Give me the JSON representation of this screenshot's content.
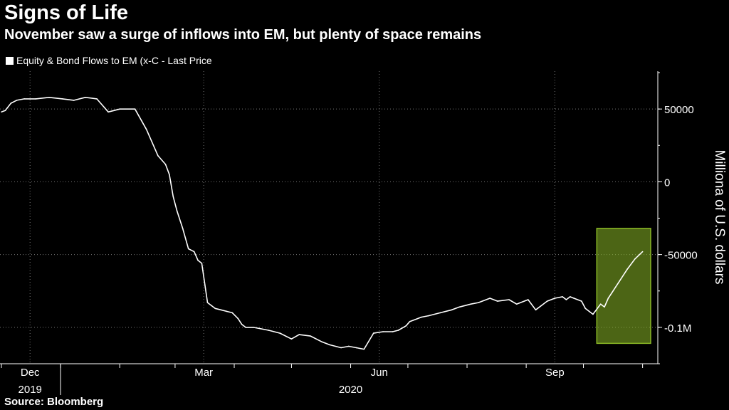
{
  "chart_data": {
    "type": "line",
    "title": "Signs of Life",
    "subtitle": "November saw a surge of inflows into EM, but plenty of space remains",
    "ylabel": "Milliona of U.S. dollars",
    "legend": "Equity & Bond Flows to EM (x-C - Last Price",
    "source": "Source: Bloomberg",
    "ylim": [
      -125000,
      76000
    ],
    "y_ticks": [
      {
        "value": 50000,
        "label": "50000"
      },
      {
        "value": 0,
        "label": "0"
      },
      {
        "value": -50000,
        "label": "-50000"
      },
      {
        "value": -100000,
        "label": "-0.1M"
      }
    ],
    "x_labels": [
      {
        "day": 15,
        "label": "Dec"
      },
      {
        "day": 106,
        "label": "Mar"
      },
      {
        "day": 198,
        "label": "Jun"
      },
      {
        "day": 290,
        "label": "Sep"
      }
    ],
    "year_labels": [
      {
        "day": 15,
        "label": "2019"
      },
      {
        "day": 183,
        "label": "2020"
      }
    ],
    "highlight": {
      "x_start_day": 312,
      "x_end_day": 338,
      "y_top": -32000,
      "y_bottom": -111000,
      "color": "#8ab826"
    },
    "series": [
      {
        "name": "Equity & Bond Flows to EM (x-C - Last Price",
        "x_days": [
          0,
          2,
          5,
          8,
          12,
          18,
          25,
          32,
          38,
          44,
          50,
          56,
          62,
          70,
          76,
          82,
          86,
          88,
          90,
          92,
          95,
          98,
          101,
          103,
          105,
          108,
          110,
          112,
          115,
          118,
          121,
          124,
          126,
          128,
          132,
          136,
          140,
          146,
          152,
          156,
          162,
          168,
          172,
          178,
          182,
          186,
          190,
          195,
          200,
          205,
          208,
          212,
          214,
          216,
          220,
          224,
          230,
          236,
          240,
          246,
          250,
          256,
          260,
          266,
          270,
          276,
          280,
          286,
          290,
          294,
          296,
          298,
          300,
          304,
          306,
          310,
          314,
          316,
          318,
          320,
          324,
          328,
          332,
          336
        ],
        "values": [
          48000,
          49000,
          54000,
          56000,
          57000,
          57000,
          58000,
          57000,
          56000,
          58000,
          57000,
          48000,
          50000,
          50000,
          36000,
          18000,
          12000,
          5000,
          -10000,
          -20000,
          -32000,
          -46000,
          -48000,
          -54000,
          -56000,
          -83000,
          -85000,
          -87000,
          -88000,
          -89000,
          -90000,
          -94000,
          -98000,
          -100000,
          -100000,
          -101000,
          -102000,
          -104000,
          -108000,
          -105000,
          -106000,
          -110000,
          -112000,
          -114000,
          -113000,
          -114000,
          -115000,
          -104000,
          -103000,
          -103000,
          -102000,
          -99000,
          -96000,
          -95000,
          -93000,
          -92000,
          -90000,
          -88000,
          -86000,
          -84000,
          -83000,
          -80000,
          -82000,
          -81000,
          -84000,
          -81000,
          -88000,
          -82000,
          -80000,
          -79000,
          -81000,
          -79000,
          -80000,
          -82000,
          -87000,
          -91000,
          -84000,
          -86000,
          -80000,
          -76000,
          -68000,
          -60000,
          -53000,
          -48000
        ]
      }
    ]
  }
}
